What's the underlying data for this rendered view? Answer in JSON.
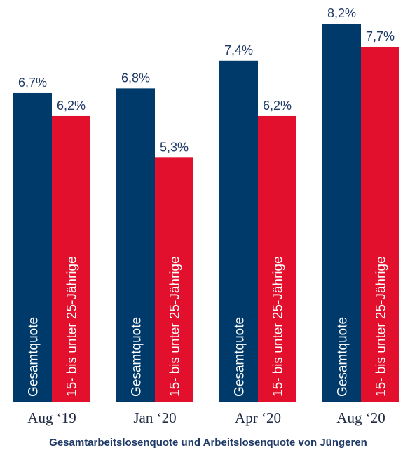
{
  "chart_data": {
    "type": "bar",
    "categories": [
      "Aug ‘19",
      "Jan ‘20",
      "Apr ‘20",
      "Aug ‘20"
    ],
    "series": [
      {
        "name": "Gesamtquote",
        "values": [
          6.7,
          6.8,
          7.4,
          8.2
        ],
        "labels": [
          "6,7%",
          "6,8%",
          "7,4%",
          "8,2%"
        ],
        "color": "#003a6b"
      },
      {
        "name": "15- bis unter 25-Jährige",
        "values": [
          6.2,
          5.3,
          6.2,
          7.7
        ],
        "labels": [
          "6,2%",
          "5,3%",
          "6,2%",
          "7,7%"
        ],
        "color": "#e3102d"
      }
    ],
    "title": "",
    "caption": "Gesamtarbeitslosenquote und Arbeitslosenquote von Jüngeren",
    "xlabel": "",
    "ylabel": "",
    "grid": false,
    "legend": "series names written inside bars"
  }
}
